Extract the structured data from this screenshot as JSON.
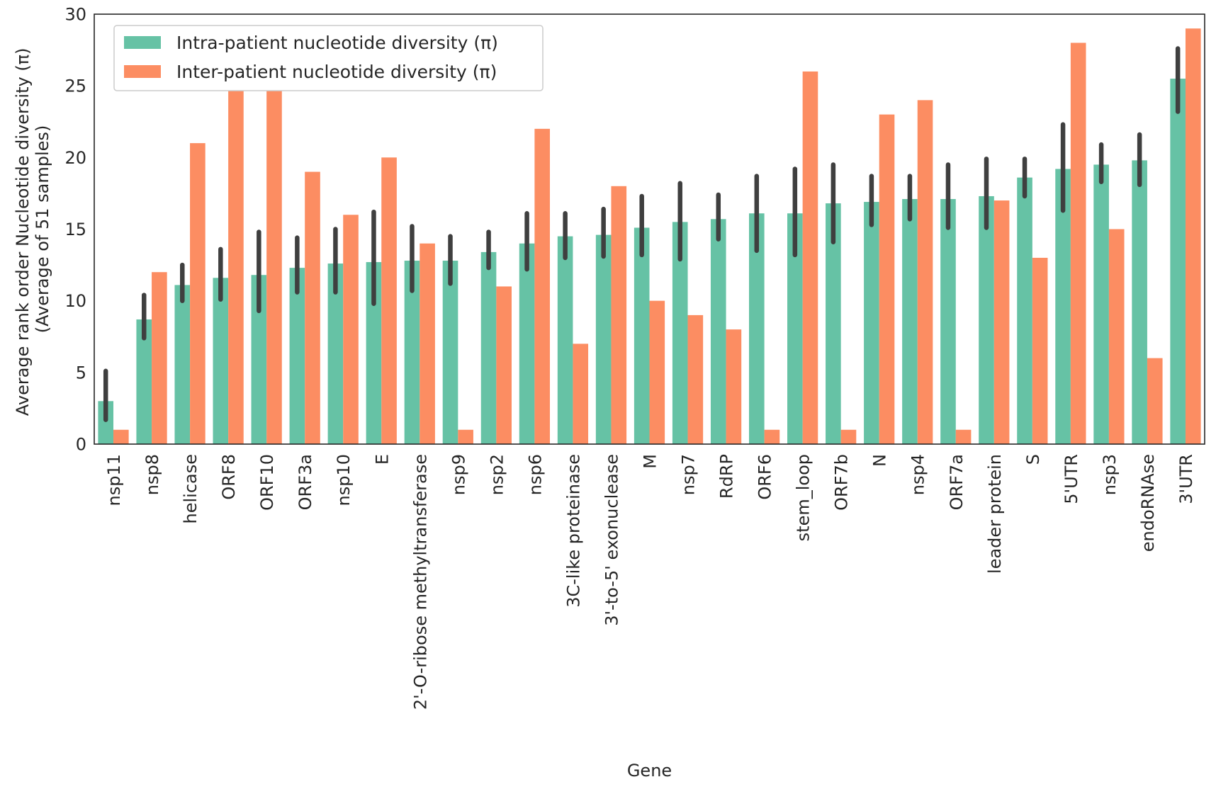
{
  "chart_data": {
    "type": "bar",
    "xlabel": "Gene",
    "ylabel": [
      "Average rank order Nucleotide diversity (π)",
      "(Average of 51 samples)"
    ],
    "ylim": [
      0,
      30
    ],
    "yticks": [
      0,
      5,
      10,
      15,
      20,
      25,
      30
    ],
    "grid": false,
    "legend_position": "top-left",
    "categories": [
      "nsp11",
      "nsp8",
      "helicase",
      "ORF8",
      "ORF10",
      "ORF3a",
      "nsp10",
      "E",
      "2'-O-ribose methyltransferase",
      "nsp9",
      "nsp2",
      "nsp6",
      "3C-like proteinase",
      "3'-to-5' exonuclease",
      "M",
      "nsp7",
      "RdRP",
      "ORF6",
      "stem_loop",
      "ORF7b",
      "N",
      "nsp4",
      "ORF7a",
      "leader protein",
      "S",
      "5'UTR",
      "nsp3",
      "endoRNAse",
      "3'UTR"
    ],
    "series": [
      {
        "name": "Intra-patient nucleotide diversity (π)",
        "color": "#66c2a5",
        "values": [
          3.0,
          8.7,
          11.1,
          11.6,
          11.8,
          12.3,
          12.6,
          12.7,
          12.8,
          12.8,
          13.4,
          14.0,
          14.5,
          14.6,
          15.1,
          15.5,
          15.7,
          16.1,
          16.1,
          16.8,
          16.9,
          17.1,
          17.1,
          17.3,
          18.6,
          19.2,
          19.5,
          19.8,
          25.5
        ],
        "error_low": [
          1.7,
          7.4,
          10.0,
          10.1,
          9.3,
          10.6,
          10.6,
          9.8,
          10.7,
          11.2,
          12.3,
          12.2,
          13.0,
          13.1,
          13.2,
          12.9,
          14.3,
          13.5,
          13.2,
          14.1,
          15.3,
          15.7,
          15.1,
          15.1,
          17.3,
          16.3,
          18.3,
          18.1,
          23.2
        ],
        "error_high": [
          5.1,
          10.4,
          12.5,
          13.6,
          14.8,
          14.4,
          15.0,
          16.2,
          15.2,
          14.5,
          14.8,
          16.1,
          16.1,
          16.4,
          17.3,
          18.2,
          17.4,
          18.7,
          19.2,
          19.5,
          18.7,
          18.7,
          19.5,
          19.9,
          19.9,
          22.3,
          20.9,
          21.6,
          27.6
        ]
      },
      {
        "name": "Inter-patient nucleotide diversity (π)",
        "color": "#fc8d62",
        "values": [
          1,
          12,
          21,
          27,
          25,
          19,
          16,
          20,
          14,
          1,
          11,
          22,
          7,
          18,
          10,
          9,
          8,
          1,
          26,
          1,
          23,
          24,
          1,
          17,
          13,
          28,
          15,
          6,
          29
        ]
      }
    ]
  }
}
